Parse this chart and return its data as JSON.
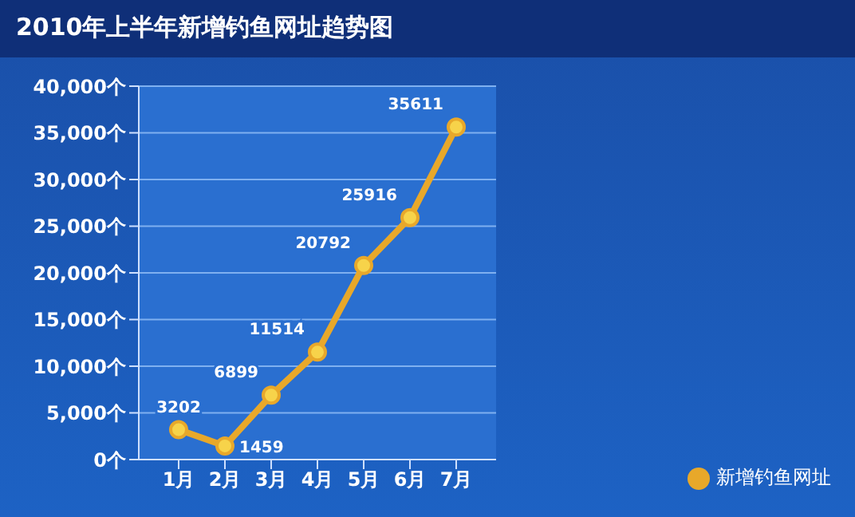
{
  "chart_data": {
    "type": "line",
    "title": "2010年上半年新增钓鱼网址趋势图",
    "categories": [
      "1月",
      "2月",
      "3月",
      "4月",
      "5月",
      "6月",
      "7月"
    ],
    "series": [
      {
        "name": "新增钓鱼网址",
        "color": "#e8a82a",
        "values": [
          3202,
          1459,
          6899,
          11514,
          20792,
          25916,
          35611
        ]
      }
    ],
    "ylim": [
      0,
      40000
    ],
    "yticks": [
      {
        "value": 0,
        "label": "0个"
      },
      {
        "value": 5000,
        "label": "5,000个"
      },
      {
        "value": 10000,
        "label": "10,000个"
      },
      {
        "value": 15000,
        "label": "15,000个"
      },
      {
        "value": 20000,
        "label": "20,000个"
      },
      {
        "value": 25000,
        "label": "25,000个"
      },
      {
        "value": 30000,
        "label": "30,000个"
      },
      {
        "value": 35000,
        "label": "35,000个"
      },
      {
        "value": 40000,
        "label": "40,000个"
      }
    ],
    "grid": "y",
    "legend": "bottom right",
    "marker": "circle",
    "line_style": "solid",
    "data_labels": true
  }
}
